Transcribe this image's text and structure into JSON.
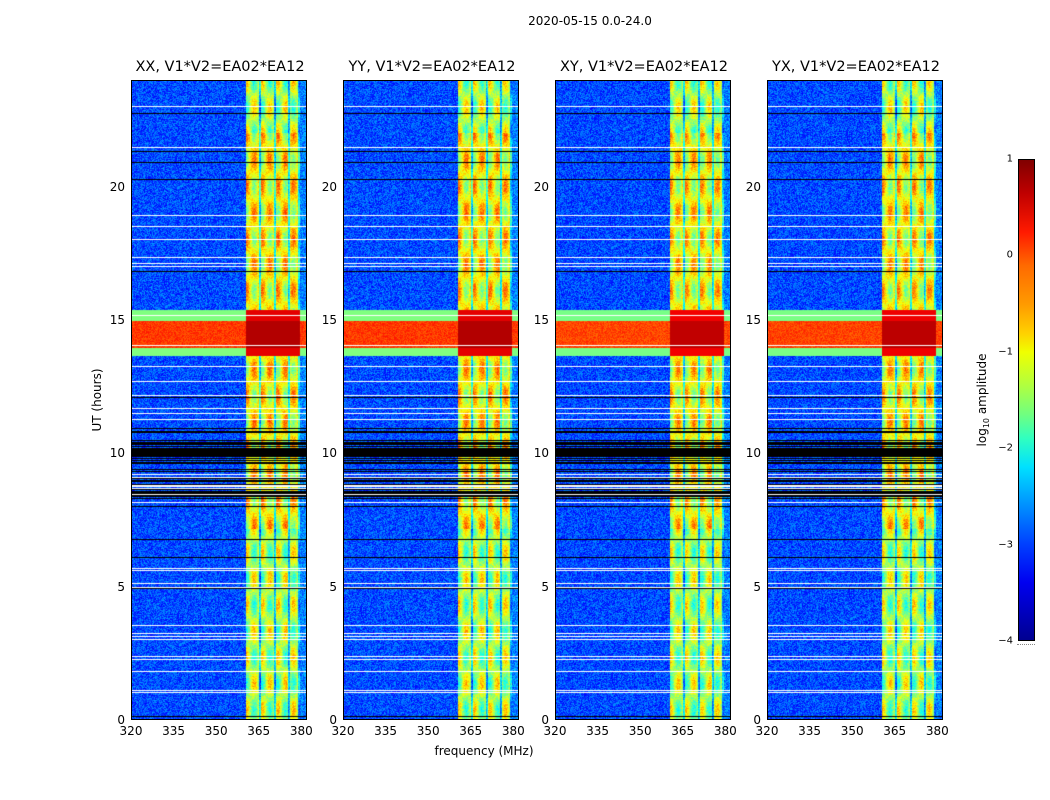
{
  "chart_data": {
    "type": "heatmap",
    "title": "2020-05-15 0.0-24.0",
    "xlabel": "frequency (MHz)",
    "ylabel": "UT (hours)",
    "xlim": [
      320,
      382
    ],
    "ylim": [
      0,
      24
    ],
    "xticks": [
      "320",
      "335",
      "350",
      "365",
      "380"
    ],
    "xtick_values": [
      320,
      335,
      350,
      365,
      380
    ],
    "yticks": [
      "0",
      "5",
      "10",
      "15",
      "20"
    ],
    "ytick_values": [
      0,
      5,
      10,
      15,
      20
    ],
    "panels": [
      {
        "title": "XX, V1*V2=EA02*EA12",
        "polarization": "XX"
      },
      {
        "title": "YY, V1*V2=EA02*EA12",
        "polarization": "YY"
      },
      {
        "title": "XY, V1*V2=EA02*EA12",
        "polarization": "XY"
      },
      {
        "title": "YX, V1*V2=EA02*EA12",
        "polarization": "YX"
      }
    ],
    "features": {
      "band_freq_range_mhz": [
        360,
        379
      ],
      "band_log_amplitude_approx": -0.5,
      "background_log_amplitude_approx": -3,
      "strong_rfi_hours": [
        14.0,
        15.0
      ],
      "strong_rfi_log_amplitude_approx": 0.5,
      "flagged_dense_region_hours": [
        8.0,
        11.0
      ]
    },
    "colorbar": {
      "label_prefix": "log",
      "label_sub": "10",
      "label_suffix": " amplitude",
      "range": [
        -4,
        1
      ],
      "ticks": [
        "1",
        "0",
        "−1",
        "−2",
        "−3",
        "−4"
      ],
      "tick_values": [
        1,
        0,
        -1,
        -2,
        -3,
        -4
      ],
      "colormap": "jet"
    }
  }
}
